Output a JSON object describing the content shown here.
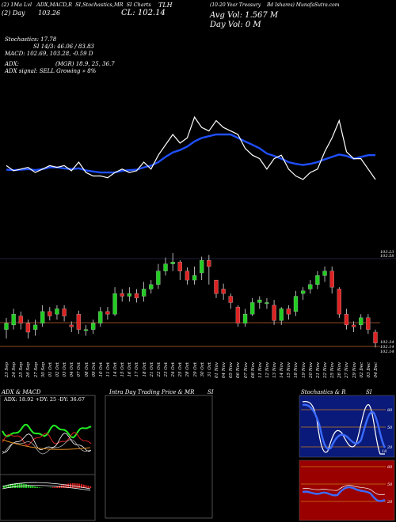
{
  "header": {
    "left1": "(2) 1Ma Lvl",
    "left1b": "ADX,MACD,R",
    "left1c": "SI,Stochastics,MR",
    "left1d": "SI Charts",
    "ticker": "TLH",
    "left2": "(2) Day",
    "left2b": "103.26",
    "cl": "CL: 102.14",
    "desc1": "(10-20 Year Treasury",
    "desc2": "Bd Ishares) MunafaSutra.com",
    "avg_vol": "Avg Vol: 1.567 M",
    "day_vol": "Day Vol: 0   M"
  },
  "indicators": {
    "stochastics": "Stochastics: 17.78",
    "si": "SI 14/3: 46.06  /  83.83",
    "macd": "MACD: 102.69,  103.28,  -0.59 D",
    "adx": "ADX:",
    "mrsi": "(MGR) 18.9,  25,  36.7",
    "signal": "ADX  signal: SELL  Growing » 8%"
  },
  "price_labels": [
    "103.23",
    "102.58",
    "102.14"
  ],
  "price_labels_b": [
    "102.34",
    "102.14"
  ],
  "dates": [
    "23 Sep",
    "24 Sep",
    "25 Sep",
    "26 Sep",
    "27 Sep",
    "30 Sep",
    "01 Oct",
    "02 Oct",
    "03 Oct",
    "04 Oct",
    "07 Oct",
    "08 Oct",
    "09 Oct",
    "10 Oct",
    "11 Oct",
    "14 Oct",
    "15 Oct",
    "16 Oct",
    "17 Oct",
    "18 Oct",
    "21 Oct",
    "22 Oct",
    "23 Oct",
    "24 Oct",
    "25 Oct",
    "28 Oct",
    "29 Oct",
    "30 Oct",
    "31 Oct",
    "01 Nov",
    "04 Nov",
    "05 Nov",
    "06 Nov",
    "07 Nov",
    "08 Nov",
    "11 Nov",
    "12 Nov",
    "13 Nov",
    "14 Nov",
    "15 Nov",
    "18 Nov",
    "19 Nov",
    "20 Nov",
    "21 Nov",
    "22 Nov",
    "25 Nov",
    "26 Nov",
    "27 Nov",
    "29 Nov",
    "02 Dec",
    "03 Dec",
    "04 Dec"
  ],
  "panels": {
    "adx": {
      "title": "ADX  & MACD",
      "value": "ADX: 18.92  +DY: 25  -DY: 36.67"
    },
    "intraday": {
      "title": "Intra  Day Trading Price  & MR",
      "title2": "SI"
    },
    "stoch": {
      "title": "Stochastics & R",
      "title2": "SI",
      "labels": [
        "80",
        "50",
        "20"
      ],
      "labels2": [
        "80",
        "50",
        "20"
      ],
      "value": "18"
    }
  },
  "colors": {
    "up": "#22cc22",
    "down": "#dd2222",
    "ma": "#1f4fff",
    "price": "#ffffff",
    "grid": "#c0504d"
  },
  "chart_data": {
    "type": "line",
    "title": "TLH",
    "series": [
      {
        "name": "price",
        "values": [
          103.1,
          102.95,
          103.0,
          103.05,
          102.9,
          103.0,
          103.1,
          103.05,
          103.1,
          102.95,
          103.2,
          102.9,
          102.8,
          102.8,
          102.75,
          102.9,
          103.0,
          102.9,
          102.95,
          103.2,
          103.0,
          103.4,
          103.7,
          104.0,
          103.75,
          103.9,
          104.5,
          104.2,
          104.1,
          104.4,
          104.2,
          104.1,
          104.0,
          103.6,
          103.4,
          103.3,
          103.0,
          103.3,
          103.4,
          103.0,
          102.8,
          102.7,
          102.9,
          103.0,
          103.5,
          103.9,
          104.4,
          103.5,
          103.3,
          103.3,
          103.0,
          102.7
        ]
      },
      {
        "name": "moving average",
        "values": [
          102.98,
          102.97,
          102.98,
          103.0,
          102.97,
          103.0,
          103.05,
          103.05,
          103.02,
          103.0,
          103.02,
          102.96,
          102.93,
          102.9,
          102.9,
          102.9,
          102.95,
          102.97,
          102.98,
          103.05,
          103.1,
          103.2,
          103.35,
          103.48,
          103.55,
          103.65,
          103.8,
          103.9,
          103.95,
          104.0,
          104.0,
          104.0,
          103.9,
          103.8,
          103.7,
          103.6,
          103.45,
          103.38,
          103.3,
          103.2,
          103.15,
          103.12,
          103.15,
          103.2,
          103.28,
          103.35,
          103.42,
          103.38,
          103.3,
          103.35,
          103.4,
          103.4
        ]
      }
    ],
    "candles": [
      [
        102.55,
        102.62,
        102.68,
        102.45
      ],
      [
        102.6,
        102.72,
        102.78,
        102.55
      ],
      [
        102.7,
        102.62,
        102.75,
        102.55
      ],
      [
        102.62,
        102.52,
        102.66,
        102.45
      ],
      [
        102.55,
        102.6,
        102.66,
        102.48
      ],
      [
        102.62,
        102.75,
        102.82,
        102.58
      ],
      [
        102.75,
        102.7,
        102.8,
        102.65
      ],
      [
        102.72,
        102.78,
        102.82,
        102.66
      ],
      [
        102.78,
        102.7,
        102.82,
        102.64
      ],
      [
        102.6,
        102.58,
        102.64,
        102.52
      ],
      [
        102.72,
        102.55,
        102.76,
        102.5
      ],
      [
        102.55,
        102.55,
        102.6,
        102.48
      ],
      [
        102.55,
        102.62,
        102.66,
        102.5
      ],
      [
        102.62,
        102.75,
        102.8,
        102.58
      ],
      [
        102.75,
        102.72,
        102.8,
        102.66
      ],
      [
        102.72,
        102.95,
        103.02,
        102.7
      ],
      [
        102.95,
        102.92,
        103.0,
        102.86
      ],
      [
        102.92,
        102.95,
        103.02,
        102.86
      ],
      [
        102.95,
        102.9,
        103.0,
        102.85
      ],
      [
        102.92,
        103.0,
        103.08,
        102.86
      ],
      [
        103.0,
        103.05,
        103.1,
        102.95
      ],
      [
        103.05,
        103.2,
        103.28,
        103.0
      ],
      [
        103.2,
        103.28,
        103.35,
        103.15
      ],
      [
        103.28,
        103.3,
        103.4,
        103.2
      ],
      [
        103.3,
        103.2,
        103.32,
        103.1
      ],
      [
        103.2,
        103.1,
        103.24,
        103.05
      ],
      [
        103.1,
        103.15,
        103.25,
        103.05
      ],
      [
        103.18,
        103.32,
        103.36,
        103.1
      ],
      [
        103.32,
        103.25,
        103.38,
        103.05
      ],
      [
        103.1,
        102.95,
        103.1,
        102.9
      ],
      [
        103.0,
        102.95,
        103.06,
        102.88
      ],
      [
        102.92,
        102.85,
        102.95,
        102.78
      ],
      [
        102.8,
        102.62,
        102.82,
        102.58
      ],
      [
        102.62,
        102.72,
        102.78,
        102.58
      ],
      [
        102.72,
        102.85,
        102.9,
        102.7
      ],
      [
        102.85,
        102.88,
        102.92,
        102.78
      ],
      [
        102.85,
        102.85,
        102.9,
        102.78
      ],
      [
        102.82,
        102.65,
        102.88,
        102.6
      ],
      [
        102.65,
        102.78,
        102.8,
        102.6
      ],
      [
        102.78,
        102.72,
        102.82,
        102.66
      ],
      [
        102.75,
        102.92,
        102.98,
        102.7
      ],
      [
        102.95,
        102.98,
        103.02,
        102.88
      ],
      [
        103.0,
        103.05,
        103.1,
        102.95
      ],
      [
        103.05,
        103.15,
        103.2,
        103.0
      ],
      [
        103.15,
        103.2,
        103.25,
        103.08
      ],
      [
        103.2,
        103.02,
        103.25,
        102.95
      ],
      [
        103.0,
        102.72,
        103.02,
        102.68
      ],
      [
        102.72,
        102.6,
        102.78,
        102.55
      ],
      [
        102.6,
        102.58,
        102.64,
        102.52
      ],
      [
        102.6,
        102.68,
        102.72,
        102.55
      ],
      [
        102.68,
        102.55,
        102.72,
        102.5
      ],
      [
        102.52,
        102.4,
        102.55,
        102.35
      ]
    ]
  }
}
